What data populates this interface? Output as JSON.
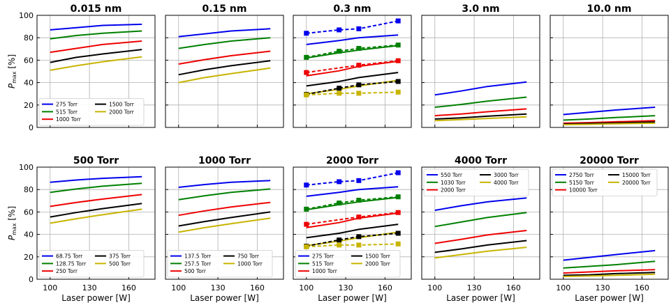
{
  "chart_data": [
    {
      "type": "line",
      "title": "0.015 nm",
      "xlabel": "",
      "ylabel": "P_max [%]",
      "x": [
        100,
        120,
        140,
        170
      ],
      "xlim": [
        90,
        180
      ],
      "ylim": [
        0,
        100
      ],
      "grid": true,
      "legend": {
        "placement": "bottom-left",
        "columns": 2
      },
      "series": [
        {
          "name": "275 Torr",
          "color": "#0000ee",
          "style": "solid",
          "values": [
            87,
            89,
            91,
            92
          ]
        },
        {
          "name": "515 Torr",
          "color": "#008000",
          "style": "solid",
          "values": [
            79,
            82,
            84,
            86
          ]
        },
        {
          "name": "1000 Torr",
          "color": "#ee0000",
          "style": "solid",
          "values": [
            67,
            70.5,
            74,
            77
          ]
        },
        {
          "name": "1500 Torr",
          "color": "#000000",
          "style": "solid",
          "values": [
            58,
            62.5,
            65.5,
            69.5
          ]
        },
        {
          "name": "2000 Torr",
          "color": "#c8b400",
          "style": "solid",
          "values": [
            51,
            55,
            58.5,
            63
          ]
        }
      ]
    },
    {
      "type": "line",
      "title": "0.15 nm",
      "x": [
        100,
        120,
        140,
        170
      ],
      "xlim": [
        90,
        180
      ],
      "ylim": [
        0,
        100
      ],
      "grid": true,
      "series": [
        {
          "color": "#0000ee",
          "style": "solid",
          "values": [
            81,
            83.5,
            86,
            88
          ]
        },
        {
          "color": "#008000",
          "style": "solid",
          "values": [
            70.5,
            74,
            77,
            80
          ]
        },
        {
          "color": "#ee0000",
          "style": "solid",
          "values": [
            56.5,
            60.5,
            64,
            68
          ]
        },
        {
          "color": "#000000",
          "style": "solid",
          "values": [
            47,
            51.5,
            55,
            59.5
          ]
        },
        {
          "color": "#c8b400",
          "style": "solid",
          "values": [
            40,
            44.5,
            48,
            53
          ]
        }
      ]
    },
    {
      "type": "line",
      "title": "0.3 nm",
      "x": [
        100,
        125,
        140,
        170
      ],
      "xlim": [
        90,
        180
      ],
      "ylim": [
        0,
        100
      ],
      "grid": true,
      "series": [
        {
          "color": "#0000ee",
          "style": "solid",
          "values": [
            74,
            77.5,
            80,
            82.5
          ]
        },
        {
          "color": "#008000",
          "style": "solid",
          "values": [
            62,
            66.5,
            69,
            73
          ]
        },
        {
          "color": "#ee0000",
          "style": "solid",
          "values": [
            46,
            50.5,
            54.5,
            59
          ]
        },
        {
          "color": "#000000",
          "style": "solid",
          "values": [
            37,
            41,
            44.5,
            49
          ]
        },
        {
          "color": "#c8b400",
          "style": "solid",
          "values": [
            30,
            34,
            37,
            42
          ]
        },
        {
          "color": "#0000ee",
          "style": "dashed-square",
          "values": [
            84,
            87,
            88,
            95
          ]
        },
        {
          "color": "#008000",
          "style": "dashed-square",
          "values": [
            62.5,
            68,
            70.5,
            73.5
          ]
        },
        {
          "color": "#ee0000",
          "style": "dashed-square",
          "values": [
            49,
            null,
            55.5,
            59.5
          ]
        },
        {
          "color": "#000000",
          "style": "dashed-square",
          "values": [
            29.5,
            35,
            38,
            41
          ]
        },
        {
          "color": "#c8b400",
          "style": "dashed-square",
          "values": [
            29,
            30.5,
            30.5,
            31.5
          ]
        }
      ]
    },
    {
      "type": "line",
      "title": "3.0 nm",
      "x": [
        100,
        120,
        140,
        170
      ],
      "xlim": [
        90,
        180
      ],
      "ylim": [
        0,
        100
      ],
      "grid": true,
      "series": [
        {
          "color": "#0000ee",
          "style": "solid",
          "values": [
            29,
            32.5,
            36.5,
            40.5
          ]
        },
        {
          "color": "#008000",
          "style": "solid",
          "values": [
            18,
            20.5,
            23.5,
            27
          ]
        },
        {
          "color": "#ee0000",
          "style": "solid",
          "values": [
            10.5,
            12,
            14,
            16.5
          ]
        },
        {
          "color": "#000000",
          "style": "solid",
          "values": [
            7.5,
            8.5,
            10,
            12
          ]
        },
        {
          "color": "#c8b400",
          "style": "solid",
          "values": [
            6,
            7,
            8,
            9.5
          ]
        }
      ]
    },
    {
      "type": "line",
      "title": "10.0 nm",
      "x": [
        100,
        120,
        140,
        170
      ],
      "xlim": [
        90,
        180
      ],
      "ylim": [
        0,
        100
      ],
      "grid": true,
      "series": [
        {
          "color": "#0000ee",
          "style": "solid",
          "values": [
            11.5,
            13.5,
            15.5,
            18
          ]
        },
        {
          "color": "#008000",
          "style": "solid",
          "values": [
            6.5,
            7.5,
            8.8,
            10.5
          ]
        },
        {
          "color": "#ee0000",
          "style": "solid",
          "values": [
            3.8,
            4.3,
            5,
            6
          ]
        },
        {
          "color": "#000000",
          "style": "solid",
          "values": [
            3,
            3.5,
            4,
            4.8
          ]
        },
        {
          "color": "#c8b400",
          "style": "solid",
          "values": [
            2.5,
            2.8,
            3.2,
            3.8
          ]
        }
      ]
    },
    {
      "type": "line",
      "title": "500 Torr",
      "xlabel": "Laser power [W]",
      "ylabel": "P_max [%]",
      "x": [
        100,
        120,
        140,
        170
      ],
      "xticks": [
        100,
        130,
        160
      ],
      "xlim": [
        90,
        180
      ],
      "ylim": [
        0,
        100
      ],
      "grid": true,
      "legend": {
        "placement": "bottom-left",
        "columns": 2
      },
      "series": [
        {
          "name": "68.75 Torr",
          "color": "#0000ee",
          "style": "solid",
          "values": [
            86.5,
            88.5,
            90,
            91.5
          ]
        },
        {
          "name": "128.75 Torr",
          "color": "#008000",
          "style": "solid",
          "values": [
            77.5,
            80.5,
            83,
            85.5
          ]
        },
        {
          "name": "250 Torr",
          "color": "#ee0000",
          "style": "solid",
          "values": [
            65,
            68.5,
            71.5,
            75.5
          ]
        },
        {
          "name": "375 Torr",
          "color": "#000000",
          "style": "solid",
          "values": [
            55.5,
            59.5,
            63,
            67.5
          ]
        },
        {
          "name": "500 Torr",
          "color": "#c8b400",
          "style": "solid",
          "values": [
            50,
            54,
            57.5,
            62.5
          ]
        }
      ]
    },
    {
      "type": "line",
      "title": "1000 Torr",
      "xlabel": "Laser power [W]",
      "x": [
        100,
        120,
        140,
        170
      ],
      "xticks": [
        100,
        130,
        160
      ],
      "xlim": [
        90,
        180
      ],
      "ylim": [
        0,
        100
      ],
      "grid": true,
      "legend": {
        "placement": "bottom-left",
        "columns": 2
      },
      "series": [
        {
          "name": "137.5 Torr",
          "color": "#0000ee",
          "style": "solid",
          "values": [
            82,
            84.5,
            86.5,
            88
          ]
        },
        {
          "name": "257.5 Torr",
          "color": "#008000",
          "style": "solid",
          "values": [
            71,
            74.5,
            77.5,
            80.5
          ]
        },
        {
          "name": "500 Torr",
          "color": "#ee0000",
          "style": "solid",
          "values": [
            57,
            61,
            64.5,
            68.5
          ]
        },
        {
          "name": "750 Torr",
          "color": "#000000",
          "style": "solid",
          "values": [
            47.5,
            51.5,
            55,
            60
          ]
        },
        {
          "name": "1000 Torr",
          "color": "#c8b400",
          "style": "solid",
          "values": [
            42,
            46,
            49.5,
            54.5
          ]
        }
      ]
    },
    {
      "type": "line",
      "title": "2000 Torr",
      "xlabel": "Laser power [W]",
      "x": [
        100,
        125,
        140,
        170
      ],
      "xticks": [
        100,
        130,
        160
      ],
      "xlim": [
        90,
        180
      ],
      "ylim": [
        0,
        100
      ],
      "grid": true,
      "legend": {
        "placement": "bottom-left",
        "columns": 2
      },
      "series": [
        {
          "name": "275 Torr",
          "color": "#0000ee",
          "style": "solid",
          "values": [
            74,
            77.5,
            80,
            82.5
          ]
        },
        {
          "name": "515 Torr",
          "color": "#008000",
          "style": "solid",
          "values": [
            62,
            66.5,
            69,
            73
          ]
        },
        {
          "name": "1000 Torr",
          "color": "#ee0000",
          "style": "solid",
          "values": [
            46,
            50.5,
            54.5,
            59
          ]
        },
        {
          "name": "1500 Torr",
          "color": "#000000",
          "style": "solid",
          "values": [
            37,
            41,
            44.5,
            49
          ]
        },
        {
          "name": "2000 Torr",
          "color": "#c8b400",
          "style": "solid",
          "values": [
            30,
            34,
            37,
            42
          ]
        },
        {
          "color": "#0000ee",
          "style": "dashed-square",
          "values": [
            84,
            87,
            88,
            95
          ]
        },
        {
          "color": "#008000",
          "style": "dashed-square",
          "values": [
            62.5,
            68,
            70.5,
            73.5
          ]
        },
        {
          "color": "#ee0000",
          "style": "dashed-square",
          "values": [
            49,
            null,
            55.5,
            59.5
          ]
        },
        {
          "color": "#000000",
          "style": "dashed-square",
          "values": [
            29.5,
            35,
            38,
            41
          ]
        },
        {
          "color": "#c8b400",
          "style": "dashed-square",
          "values": [
            29,
            30.5,
            30.5,
            31.5
          ]
        }
      ]
    },
    {
      "type": "line",
      "title": "4000 Torr",
      "xlabel": "Laser power [W]",
      "x": [
        100,
        120,
        140,
        170
      ],
      "xticks": [
        100,
        130,
        160
      ],
      "xlim": [
        90,
        180
      ],
      "ylim": [
        0,
        100
      ],
      "grid": true,
      "legend": {
        "placement": "top-left",
        "columns": 2
      },
      "series": [
        {
          "name": "550 Torr",
          "color": "#0000ee",
          "style": "solid",
          "values": [
            61.5,
            65.5,
            69,
            72.5
          ]
        },
        {
          "name": "1030 Torr",
          "color": "#008000",
          "style": "solid",
          "values": [
            47,
            51,
            55,
            59.5
          ]
        },
        {
          "name": "2000 Torr",
          "color": "#ee0000",
          "style": "solid",
          "values": [
            32,
            35.5,
            39.5,
            43.5
          ]
        },
        {
          "name": "3000 Torr",
          "color": "#000000",
          "style": "solid",
          "values": [
            24,
            27,
            30.5,
            34.5
          ]
        },
        {
          "name": "4000 Torr",
          "color": "#c8b400",
          "style": "solid",
          "values": [
            19,
            22,
            25,
            28.5
          ]
        }
      ]
    },
    {
      "type": "line",
      "title": "20000 Torr",
      "xlabel": "Laser power [W]",
      "x": [
        100,
        120,
        140,
        170
      ],
      "xticks": [
        100,
        130,
        160
      ],
      "xlim": [
        90,
        180
      ],
      "ylim": [
        0,
        100
      ],
      "grid": true,
      "legend": {
        "placement": "top-left",
        "columns": 2
      },
      "series": [
        {
          "name": "2750 Torr",
          "color": "#0000ee",
          "style": "solid",
          "values": [
            17,
            19.5,
            22,
            25.5
          ]
        },
        {
          "name": "5150 Torr",
          "color": "#008000",
          "style": "solid",
          "values": [
            10,
            11.5,
            13,
            16
          ]
        },
        {
          "name": "10000 Torr",
          "color": "#ee0000",
          "style": "solid",
          "values": [
            5.5,
            6.5,
            7.5,
            8.5
          ]
        },
        {
          "name": "15000 Torr",
          "color": "#000000",
          "style": "solid",
          "values": [
            3.5,
            4,
            5,
            6
          ]
        },
        {
          "name": "20000 Torr",
          "color": "#c8b400",
          "style": "solid",
          "values": [
            2.5,
            3,
            3.5,
            4.5
          ]
        }
      ]
    }
  ],
  "y_ticks": [
    "0",
    "20",
    "40",
    "60",
    "80",
    "100"
  ],
  "x_ticks": [
    "100",
    "130",
    "160"
  ]
}
